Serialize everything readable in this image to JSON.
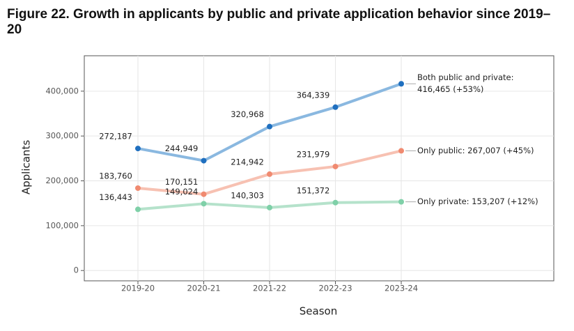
{
  "chart_data": {
    "type": "line",
    "title": "Figure 22. Growth in applicants by public and private application behavior since 2019–20",
    "x_label": "Season",
    "y_label": "Applicants",
    "categories": [
      "2019-20",
      "2020-21",
      "2021-22",
      "2022-23",
      "2023-24"
    ],
    "ylim": [
      -23000,
      479000
    ],
    "yticks": [
      0,
      {
        "value": 100000,
        "label": "100,000"
      },
      {
        "value": 200000,
        "label": "200,000"
      },
      {
        "value": 300000,
        "label": "300,000"
      },
      {
        "value": 400000,
        "label": "400,000"
      }
    ],
    "grid": true,
    "series": [
      {
        "color": "#8ab8e0",
        "marker_color": "#1f6fbf",
        "values": [
          272187,
          244949,
          320968,
          364339,
          416465
        ],
        "value_labels": [
          "272,187",
          "244,949",
          "320,968",
          "364,339",
          null
        ],
        "annotation": [
          "Both public and private:",
          "416,465 (+53%)"
        ]
      },
      {
        "color": "#f7c1b2",
        "marker_color": "#f08a70",
        "values": [
          183760,
          170151,
          214942,
          231979,
          267007
        ],
        "value_labels": [
          "183,760",
          "170,151",
          "214,942",
          "231,979",
          null
        ],
        "annotation": [
          "Only public: 267,007 (+45%)"
        ]
      },
      {
        "color": "#b5e2cb",
        "marker_color": "#7fd0a8",
        "values": [
          136443,
          149024,
          140303,
          151372,
          153207
        ],
        "value_labels": [
          "136,443",
          "149,024",
          "140,303",
          "151,372",
          null
        ],
        "annotation": [
          "Only private: 153,207 (+12%)"
        ]
      }
    ]
  }
}
